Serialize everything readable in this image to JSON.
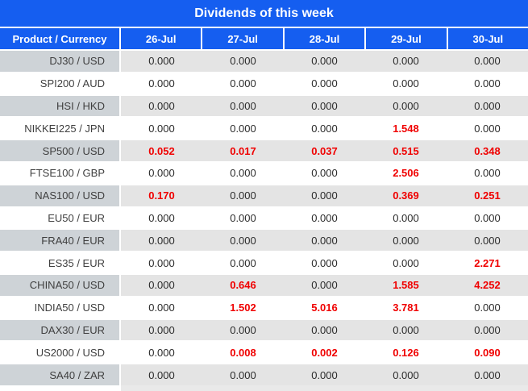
{
  "title": "Dividends of this week",
  "table": {
    "header": [
      "Product / Currency",
      "26-Jul",
      "27-Jul",
      "28-Jul",
      "29-Jul",
      "30-Jul"
    ],
    "rows": [
      {
        "product": "DJ30 / USD",
        "values": [
          "0.000",
          "0.000",
          "0.000",
          "0.000",
          "0.000"
        ]
      },
      {
        "product": "SPI200 / AUD",
        "values": [
          "0.000",
          "0.000",
          "0.000",
          "0.000",
          "0.000"
        ]
      },
      {
        "product": "HSI / HKD",
        "values": [
          "0.000",
          "0.000",
          "0.000",
          "0.000",
          "0.000"
        ]
      },
      {
        "product": "NIKKEI225 / JPN",
        "values": [
          "0.000",
          "0.000",
          "0.000",
          "1.548",
          "0.000"
        ]
      },
      {
        "product": "SP500 / USD",
        "values": [
          "0.052",
          "0.017",
          "0.037",
          "0.515",
          "0.348"
        ]
      },
      {
        "product": "FTSE100 / GBP",
        "values": [
          "0.000",
          "0.000",
          "0.000",
          "2.506",
          "0.000"
        ]
      },
      {
        "product": "NAS100 / USD",
        "values": [
          "0.170",
          "0.000",
          "0.000",
          "0.369",
          "0.251"
        ]
      },
      {
        "product": "EU50 / EUR",
        "values": [
          "0.000",
          "0.000",
          "0.000",
          "0.000",
          "0.000"
        ]
      },
      {
        "product": "FRA40 / EUR",
        "values": [
          "0.000",
          "0.000",
          "0.000",
          "0.000",
          "0.000"
        ]
      },
      {
        "product": "ES35 / EUR",
        "values": [
          "0.000",
          "0.000",
          "0.000",
          "0.000",
          "2.271"
        ]
      },
      {
        "product": "CHINA50 / USD",
        "values": [
          "0.000",
          "0.646",
          "0.000",
          "1.585",
          "4.252"
        ]
      },
      {
        "product": "INDIA50 / USD",
        "values": [
          "0.000",
          "1.502",
          "5.016",
          "3.781",
          "0.000"
        ]
      },
      {
        "product": "DAX30 / EUR",
        "values": [
          "0.000",
          "0.000",
          "0.000",
          "0.000",
          "0.000"
        ]
      },
      {
        "product": "US2000 / USD",
        "values": [
          "0.000",
          "0.008",
          "0.002",
          "0.126",
          "0.090"
        ]
      },
      {
        "product": "SA40 / ZAR",
        "values": [
          "0.000",
          "0.000",
          "0.000",
          "0.000",
          "0.000"
        ]
      }
    ],
    "zero_value": "0.000"
  },
  "colors": {
    "header_blue": "#155ef0",
    "label_gray": "#ced3d7",
    "cell_gray": "#e4e4e4",
    "footer_gray": "#e9e9e9",
    "highlight_red": "#f00000",
    "text_dark": "#2b2b2b"
  }
}
